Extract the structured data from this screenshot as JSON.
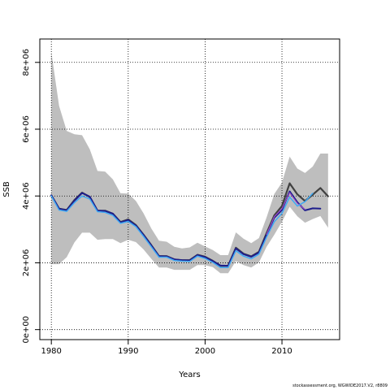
{
  "chart_data": {
    "type": "line",
    "xlabel": "Years",
    "ylabel": "SSB",
    "xlim": [
      1978.5,
      2017.5
    ],
    "ylim": [
      -300000,
      8700000
    ],
    "x_ticks": [
      1980,
      1990,
      2000,
      2010
    ],
    "x_tick_labels": [
      "1980",
      "1990",
      "2000",
      "2010"
    ],
    "y_ticks": [
      0,
      2000000,
      4000000,
      6000000,
      8000000
    ],
    "y_tick_labels": [
      "0e+00",
      "2e+06",
      "4e+06",
      "6e+06",
      "8e+06"
    ],
    "grid": true,
    "band": {
      "color": "#bebebe",
      "x": [
        1980,
        1981,
        1982,
        1983,
        1984,
        1985,
        1986,
        1987,
        1988,
        1989,
        1990,
        1991,
        1992,
        1993,
        1994,
        1995,
        1996,
        1997,
        1998,
        1999,
        2000,
        2001,
        2002,
        2003,
        2004,
        2005,
        2006,
        2007,
        2008,
        2009,
        2010,
        2011,
        2012,
        2013,
        2014,
        2015,
        2016
      ],
      "upper": [
        8300000,
        6700000,
        5950000,
        5850000,
        5820000,
        5400000,
        4750000,
        4730000,
        4500000,
        4080000,
        4070000,
        3850000,
        3480000,
        3030000,
        2660000,
        2630000,
        2480000,
        2430000,
        2460000,
        2600000,
        2490000,
        2380000,
        2230000,
        2230000,
        2910000,
        2720000,
        2590000,
        2740000,
        3360000,
        4060000,
        4400000,
        5180000,
        4820000,
        4690000,
        4880000,
        5270000,
        5270000
      ],
      "lower": [
        1960000,
        1960000,
        2170000,
        2610000,
        2900000,
        2900000,
        2690000,
        2710000,
        2710000,
        2590000,
        2690000,
        2620000,
        2400000,
        2120000,
        1860000,
        1860000,
        1790000,
        1790000,
        1790000,
        1930000,
        1930000,
        1870000,
        1690000,
        1690000,
        2050000,
        1930000,
        1860000,
        2010000,
        2480000,
        2840000,
        3230000,
        3680000,
        3390000,
        3200000,
        3310000,
        3400000,
        3050000
      ]
    },
    "series": [
      {
        "color": "#404040",
        "width": 2.2,
        "x": [
          1980,
          1981,
          1982,
          1983,
          1984,
          1985,
          1986,
          1987,
          1988,
          1989,
          1990,
          1991,
          1992,
          1993,
          1994,
          1995,
          1996,
          1997,
          1998,
          1999,
          2000,
          2001,
          2002,
          2003,
          2004,
          2005,
          2006,
          2007,
          2008,
          2009,
          2010,
          2011,
          2012,
          2013,
          2014,
          2015,
          2016
        ],
        "values": [
          4020000,
          3620000,
          3580000,
          3880000,
          4100000,
          3970000,
          3560000,
          3560000,
          3470000,
          3220000,
          3300000,
          3130000,
          2840000,
          2530000,
          2200000,
          2200000,
          2100000,
          2080000,
          2080000,
          2240000,
          2180000,
          2060000,
          1910000,
          1910000,
          2450000,
          2270000,
          2190000,
          2330000,
          2890000,
          3420000,
          3700000,
          4380000,
          4050000,
          3850000,
          4040000,
          4240000,
          3990000
        ]
      },
      {
        "color": "#1e1e8c",
        "width": 2,
        "x": [
          1980,
          1981,
          1982,
          1983,
          1984,
          1985,
          1986,
          1987,
          1988,
          1989,
          1990,
          1991,
          1992,
          1993,
          1994,
          1995,
          1996,
          1997,
          1998,
          1999,
          2000,
          2001,
          2002,
          2003,
          2004,
          2005,
          2006,
          2007,
          2008,
          2009,
          2010,
          2011,
          2012,
          2013,
          2014,
          2015
        ],
        "values": [
          4020000,
          3620000,
          3570000,
          3860000,
          4090000,
          3980000,
          3560000,
          3550000,
          3470000,
          3210000,
          3280000,
          3110000,
          2830000,
          2520000,
          2200000,
          2190000,
          2100000,
          2080000,
          2070000,
          2230000,
          2170000,
          2050000,
          1920000,
          1910000,
          2430000,
          2260000,
          2180000,
          2310000,
          2840000,
          3350000,
          3580000,
          4140000,
          3810000,
          3570000,
          3630000,
          3620000
        ]
      },
      {
        "color": "#9a4dc7",
        "width": 1.2,
        "x": [
          2008,
          2009,
          2010,
          2011,
          2012,
          2013
        ],
        "values": [
          2850000,
          3380000,
          3620000,
          4100000,
          3780000,
          3600000
        ]
      },
      {
        "color": "#3fa9f5",
        "width": 1.5,
        "x": [
          1980,
          1981,
          1982,
          1983,
          1984,
          1985,
          1986,
          1987,
          1988,
          1989,
          1990,
          1991,
          1992,
          1993,
          1994,
          1995,
          1996,
          1997,
          1998,
          1999,
          2000,
          2001,
          2002,
          2003,
          2004,
          2005,
          2006,
          2007,
          2008,
          2009,
          2010,
          2011,
          2012,
          2013,
          2014
        ],
        "values": [
          4000000,
          3580000,
          3540000,
          3800000,
          4000000,
          3910000,
          3530000,
          3510000,
          3420000,
          3180000,
          3240000,
          3080000,
          2790000,
          2480000,
          2170000,
          2170000,
          2070000,
          2050000,
          2040000,
          2200000,
          2130000,
          2010000,
          1860000,
          1860000,
          2360000,
          2200000,
          2120000,
          2260000,
          2770000,
          3230000,
          3480000,
          3970000,
          3700000,
          3830000,
          4080000
        ]
      }
    ]
  },
  "footer": "stockassessment.org, WGWIDE2017.V2, r8809"
}
